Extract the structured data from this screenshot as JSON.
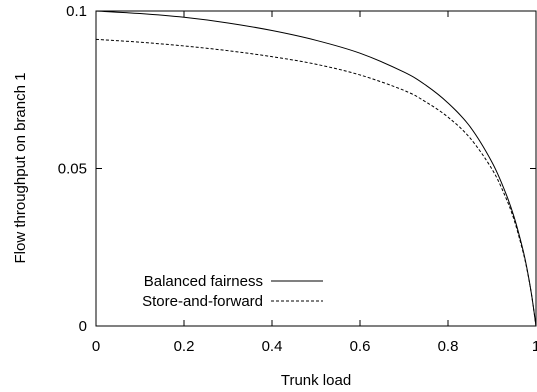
{
  "chart_data": {
    "type": "line",
    "title": "",
    "xlabel": "Trunk load",
    "ylabel": "Flow throughput on branch 1",
    "xlim": [
      0,
      1
    ],
    "ylim": [
      0,
      0.1
    ],
    "x_ticks": [
      0,
      0.2,
      0.4,
      0.6,
      0.8,
      1
    ],
    "x_tick_labels": [
      "0",
      "0.2",
      "0.4",
      "0.6",
      "0.8",
      "1"
    ],
    "y_ticks": [
      0,
      0.05,
      0.1
    ],
    "y_tick_labels": [
      "0",
      "0.05",
      "0.1"
    ],
    "grid": false,
    "legend_position": "bottom-left",
    "series": [
      {
        "name": "Balanced fairness",
        "style": "solid",
        "color": "#000000",
        "x": [
          0,
          0.1,
          0.2,
          0.3,
          0.4,
          0.5,
          0.6,
          0.7,
          0.75,
          0.8,
          0.85,
          0.9,
          0.93,
          0.95,
          0.97,
          0.98,
          0.99,
          1.0
        ],
        "y": [
          0.1,
          0.0992,
          0.098,
          0.0962,
          0.0938,
          0.0907,
          0.0866,
          0.0806,
          0.0764,
          0.0708,
          0.0633,
          0.052,
          0.0426,
          0.0347,
          0.0244,
          0.0179,
          0.0099,
          0.0
        ]
      },
      {
        "name": "Store-and-forward",
        "style": "dashed",
        "color": "#000000",
        "x": [
          0,
          0.1,
          0.2,
          0.3,
          0.4,
          0.5,
          0.6,
          0.7,
          0.75,
          0.8,
          0.85,
          0.9,
          0.93,
          0.95,
          0.97,
          0.98,
          0.99,
          1.0
        ],
        "y": [
          0.091,
          0.0901,
          0.0889,
          0.0874,
          0.0855,
          0.0831,
          0.0797,
          0.0748,
          0.0711,
          0.0663,
          0.0597,
          0.0498,
          0.0412,
          0.0338,
          0.0238,
          0.0176,
          0.0098,
          0.0
        ]
      }
    ]
  }
}
